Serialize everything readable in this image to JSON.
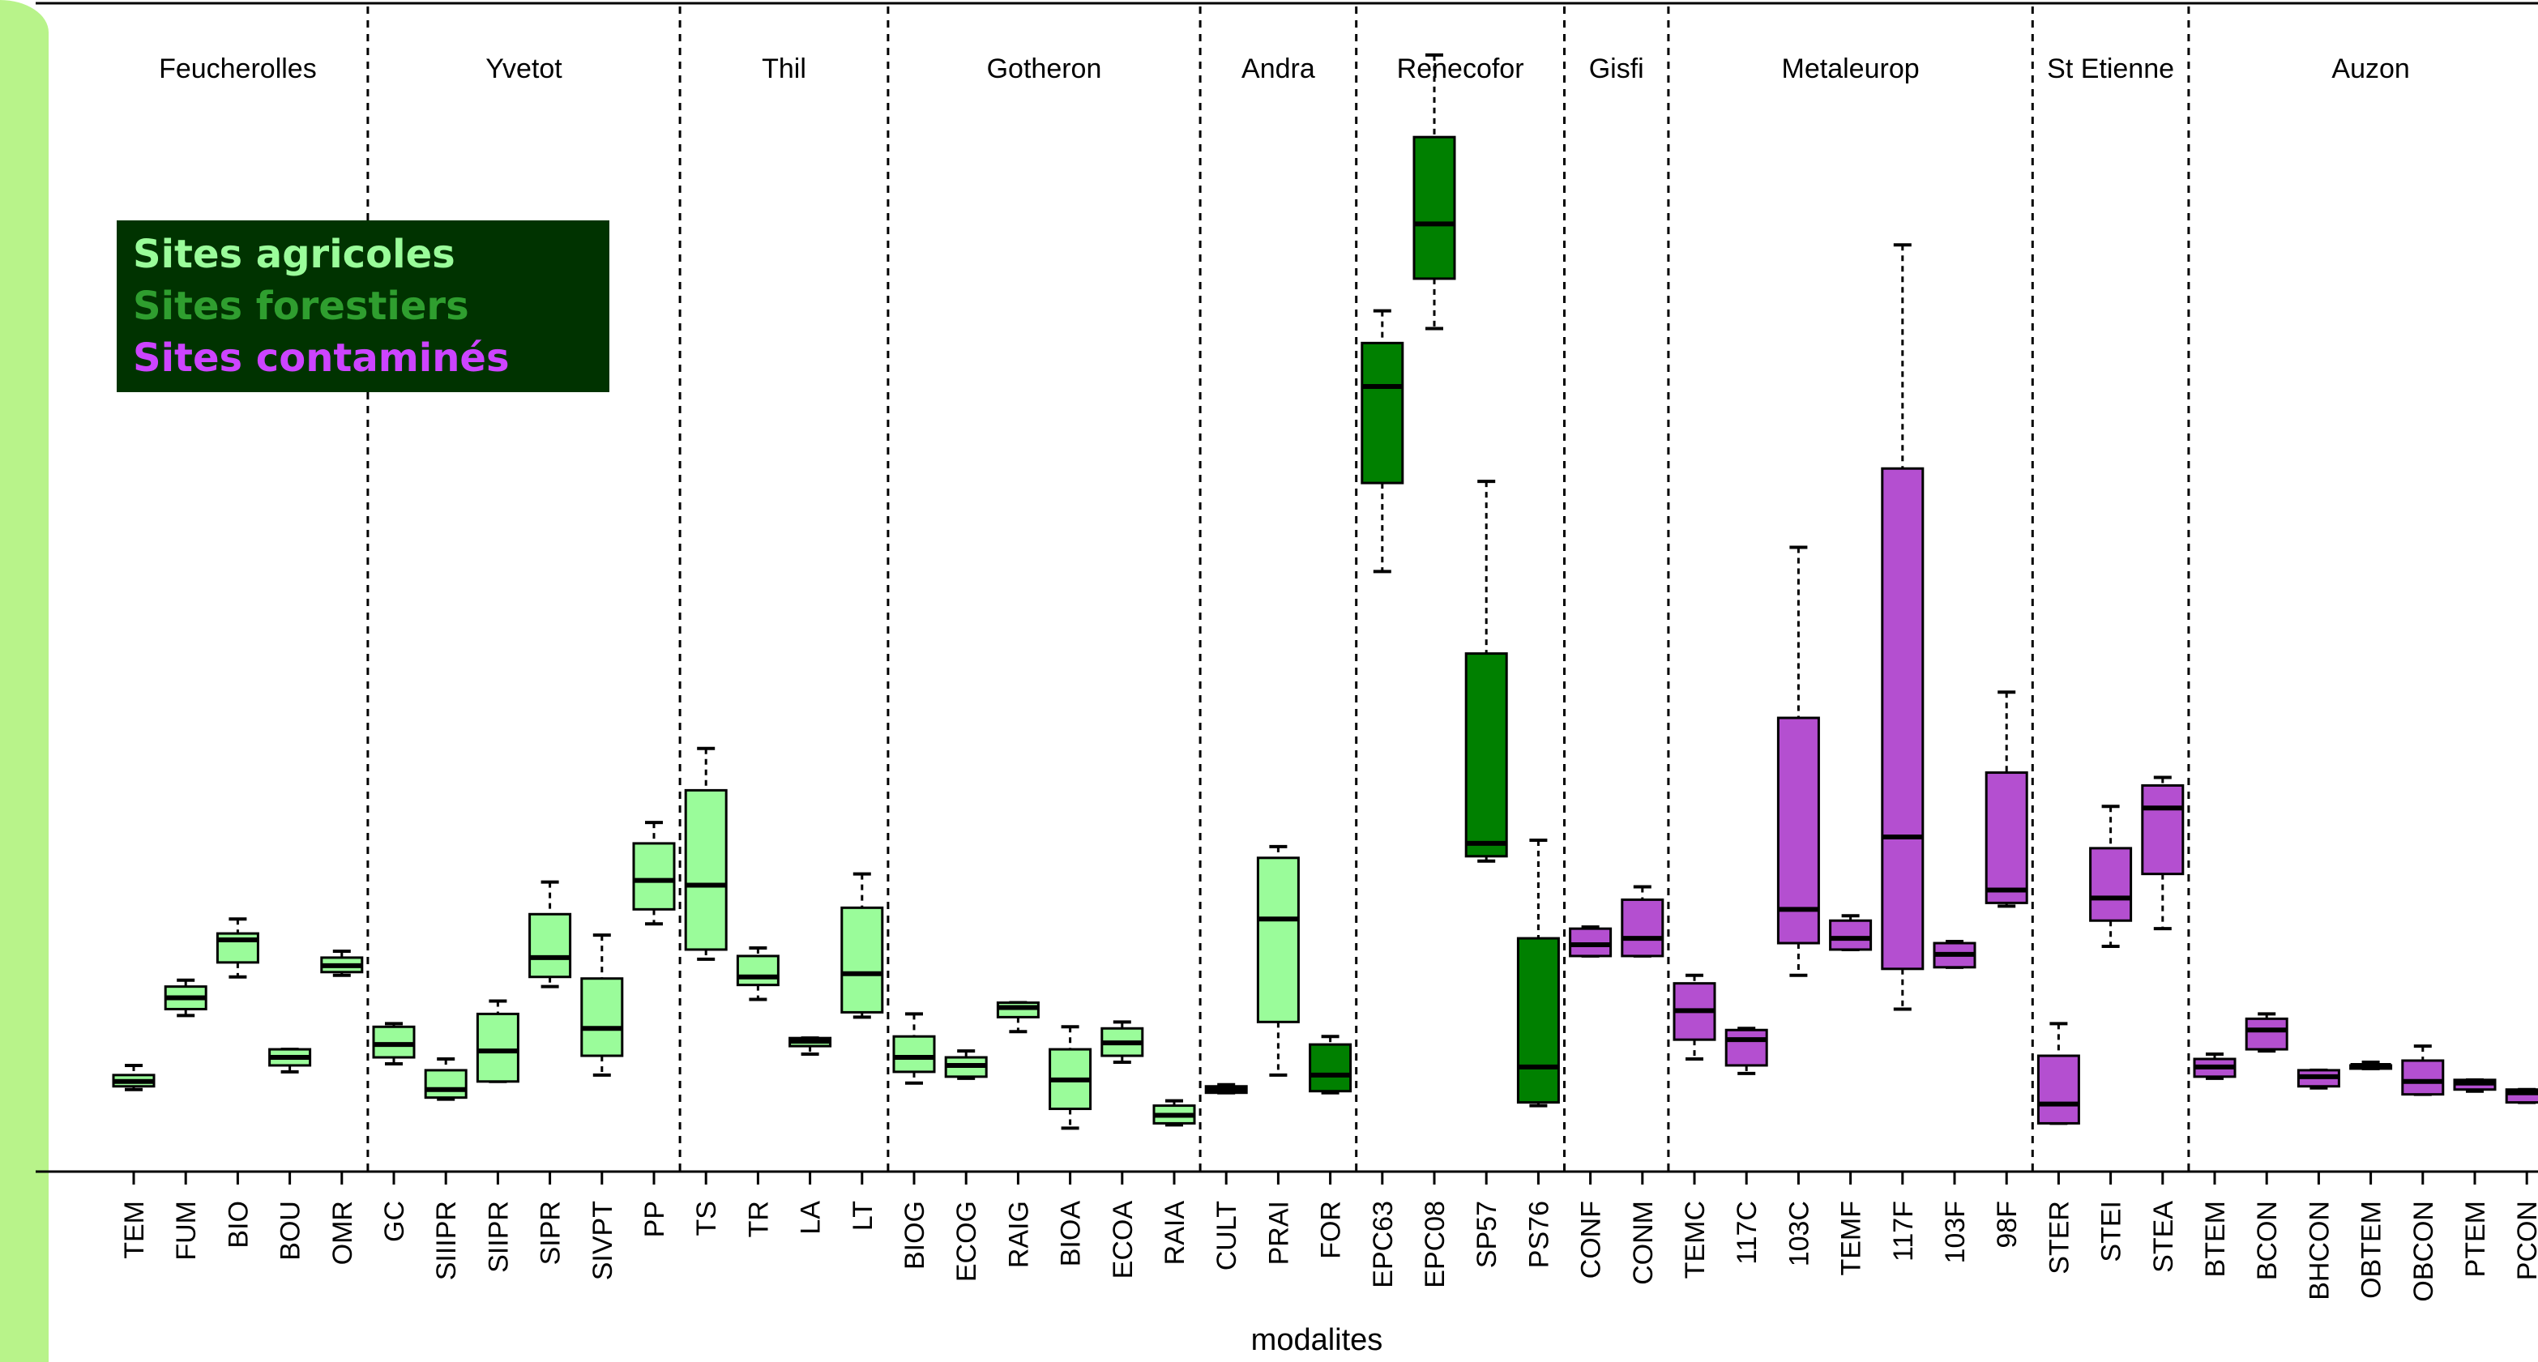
{
  "colors": {
    "agricole": "#9afc9a",
    "forestier": "#008000",
    "contamine": "#b44fd0",
    "box_stroke": "#000000",
    "legend_bg": "#003300",
    "accent": "#b8f38a"
  },
  "legend": {
    "items": [
      {
        "label": "Sites agricoles",
        "color": "#9afc9a"
      },
      {
        "label": "Sites forestiers",
        "color": "#2f9e2f"
      },
      {
        "label": "Sites contaminés",
        "color": "#cc44ff"
      }
    ]
  },
  "chart_data": {
    "type": "box",
    "xlabel": "modalites",
    "ylabel": "",
    "ylim": [
      0,
      70
    ],
    "categories": [
      "TEM",
      "FUM",
      "BIO",
      "BOU",
      "OMR",
      "GC",
      "SIIIPR",
      "SIIPR",
      "SIPR",
      "SIVPT",
      "PP",
      "TS",
      "TR",
      "LA",
      "LT",
      "BIOG",
      "ECOG",
      "RAIG",
      "BIOA",
      "ECOA",
      "RAIA",
      "CULT",
      "PRAI",
      "FOR",
      "EPC63",
      "EPC08",
      "SP57",
      "PS76",
      "CONF",
      "CONM",
      "TEMC",
      "117C",
      "103C",
      "TEMF",
      "117F",
      "103F",
      "98F",
      "STER",
      "STEI",
      "STEA",
      "BTEM",
      "BCON",
      "BHCON",
      "OBTEM",
      "OBCON",
      "PTEM",
      "PCON"
    ],
    "groups": [
      "Feucherolles",
      "Yvetot",
      "Thil",
      "Gotheron",
      "Andra",
      "Renecofor",
      "Gisfi",
      "Metaleurop",
      "St Etienne",
      "Auzon"
    ],
    "group_sizes": [
      5,
      6,
      4,
      6,
      3,
      4,
      2,
      7,
      3,
      7
    ],
    "site_type": [
      "agricole",
      "agricole",
      "agricole",
      "agricole",
      "agricole",
      "agricole",
      "agricole",
      "agricole",
      "agricole",
      "agricole",
      "agricole",
      "agricole",
      "agricole",
      "agricole",
      "agricole",
      "agricole",
      "agricole",
      "agricole",
      "agricole",
      "agricole",
      "agricole",
      "forestier",
      "agricole",
      "forestier",
      "forestier",
      "forestier",
      "forestier",
      "forestier",
      "contamine",
      "contamine",
      "contamine",
      "contamine",
      "contamine",
      "contamine",
      "contamine",
      "contamine",
      "contamine",
      "contamine",
      "contamine",
      "contamine",
      "contamine",
      "contamine",
      "contamine",
      "contamine",
      "contamine",
      "contamine",
      "contamine"
    ],
    "boxes": [
      {
        "wmin": 5.1,
        "q1": 5.3,
        "med": 5.6,
        "q3": 6.0,
        "wmax": 6.6
      },
      {
        "wmin": 9.7,
        "q1": 10.1,
        "med": 10.8,
        "q3": 11.5,
        "wmax": 11.9
      },
      {
        "wmin": 12.1,
        "q1": 13.0,
        "med": 14.4,
        "q3": 14.8,
        "wmax": 15.7
      },
      {
        "wmin": 6.2,
        "q1": 6.6,
        "med": 7.1,
        "q3": 7.6,
        "wmax": 7.6
      },
      {
        "wmin": 12.2,
        "q1": 12.4,
        "med": 12.8,
        "q3": 13.3,
        "wmax": 13.7
      },
      {
        "wmin": 6.7,
        "q1": 7.1,
        "med": 7.9,
        "q3": 9.0,
        "wmax": 9.2
      },
      {
        "wmin": 4.5,
        "q1": 4.6,
        "med": 5.1,
        "q3": 6.3,
        "wmax": 7.0
      },
      {
        "wmin": 5.6,
        "q1": 5.6,
        "med": 7.5,
        "q3": 9.8,
        "wmax": 10.6
      },
      {
        "wmin": 11.5,
        "q1": 12.1,
        "med": 13.3,
        "q3": 16.0,
        "wmax": 18.0
      },
      {
        "wmin": 6.0,
        "q1": 7.2,
        "med": 8.9,
        "q3": 12.0,
        "wmax": 14.7
      },
      {
        "wmin": 15.4,
        "q1": 16.3,
        "med": 18.1,
        "q3": 20.4,
        "wmax": 21.7
      },
      {
        "wmin": 13.2,
        "q1": 13.8,
        "med": 17.8,
        "q3": 23.7,
        "wmax": 26.3
      },
      {
        "wmin": 10.7,
        "q1": 11.6,
        "med": 12.1,
        "q3": 13.4,
        "wmax": 13.9
      },
      {
        "wmin": 7.3,
        "q1": 7.8,
        "med": 8.1,
        "q3": 8.3,
        "wmax": 8.3
      },
      {
        "wmin": 9.6,
        "q1": 9.9,
        "med": 12.3,
        "q3": 16.4,
        "wmax": 18.5
      },
      {
        "wmin": 5.5,
        "q1": 6.2,
        "med": 7.1,
        "q3": 8.4,
        "wmax": 9.8
      },
      {
        "wmin": 5.8,
        "q1": 5.9,
        "med": 6.6,
        "q3": 7.1,
        "wmax": 7.5
      },
      {
        "wmin": 8.7,
        "q1": 9.6,
        "med": 10.2,
        "q3": 10.5,
        "wmax": 10.5
      },
      {
        "wmin": 2.7,
        "q1": 3.9,
        "med": 5.7,
        "q3": 7.6,
        "wmax": 9.0
      },
      {
        "wmin": 6.8,
        "q1": 7.2,
        "med": 8.0,
        "q3": 8.9,
        "wmax": 9.3
      },
      {
        "wmin": 2.9,
        "q1": 3.0,
        "med": 3.5,
        "q3": 4.1,
        "wmax": 4.4
      },
      {
        "wmin": 4.9,
        "q1": 4.9,
        "med": 5.1,
        "q3": 5.3,
        "wmax": 5.4
      },
      {
        "wmin": 6.0,
        "q1": 9.3,
        "med": 15.7,
        "q3": 19.5,
        "wmax": 20.2
      },
      {
        "wmin": 4.9,
        "q1": 5.0,
        "med": 6.0,
        "q3": 7.9,
        "wmax": 8.4
      },
      {
        "wmin": 37.3,
        "q1": 42.8,
        "med": 48.8,
        "q3": 51.5,
        "wmax": 53.5
      },
      {
        "wmin": 52.4,
        "q1": 55.5,
        "med": 58.9,
        "q3": 64.3,
        "wmax": 69.4
      },
      {
        "wmin": 19.3,
        "q1": 19.6,
        "med": 20.4,
        "q3": 32.2,
        "wmax": 42.9
      },
      {
        "wmin": 4.1,
        "q1": 4.3,
        "med": 6.5,
        "q3": 14.5,
        "wmax": 20.6
      },
      {
        "wmin": 13.4,
        "q1": 13.4,
        "med": 14.1,
        "q3": 15.1,
        "wmax": 15.2
      },
      {
        "wmin": 13.4,
        "q1": 13.4,
        "med": 14.5,
        "q3": 16.9,
        "wmax": 17.7
      },
      {
        "wmin": 7.0,
        "q1": 8.2,
        "med": 10.0,
        "q3": 11.7,
        "wmax": 12.2
      },
      {
        "wmin": 6.1,
        "q1": 6.6,
        "med": 8.2,
        "q3": 8.8,
        "wmax": 8.9
      },
      {
        "wmin": 12.2,
        "q1": 14.2,
        "med": 16.3,
        "q3": 28.2,
        "wmax": 38.8
      },
      {
        "wmin": 13.8,
        "q1": 13.8,
        "med": 14.5,
        "q3": 15.6,
        "wmax": 15.9
      },
      {
        "wmin": 10.1,
        "q1": 12.6,
        "med": 20.8,
        "q3": 43.7,
        "wmax": 57.6
      },
      {
        "wmin": 12.7,
        "q1": 12.7,
        "med": 13.5,
        "q3": 14.2,
        "wmax": 14.3
      },
      {
        "wmin": 16.5,
        "q1": 16.7,
        "med": 17.5,
        "q3": 24.8,
        "wmax": 29.8
      },
      {
        "wmin": 3.0,
        "q1": 3.0,
        "med": 4.2,
        "q3": 7.2,
        "wmax": 9.2
      },
      {
        "wmin": 14.0,
        "q1": 15.6,
        "med": 17.0,
        "q3": 20.1,
        "wmax": 22.7
      },
      {
        "wmin": 15.1,
        "q1": 18.5,
        "med": 22.6,
        "q3": 24.0,
        "wmax": 24.5
      },
      {
        "wmin": 5.8,
        "q1": 5.9,
        "med": 6.5,
        "q3": 7.0,
        "wmax": 7.3
      },
      {
        "wmin": 7.5,
        "q1": 7.6,
        "med": 8.8,
        "q3": 9.5,
        "wmax": 9.8
      },
      {
        "wmin": 5.2,
        "q1": 5.3,
        "med": 5.9,
        "q3": 6.3,
        "wmax": 6.3
      },
      {
        "wmin": 6.4,
        "q1": 6.4,
        "med": 6.6,
        "q3": 6.6,
        "wmax": 6.8
      },
      {
        "wmin": 4.8,
        "q1": 4.8,
        "med": 5.6,
        "q3": 6.9,
        "wmax": 7.8
      },
      {
        "wmin": 5.0,
        "q1": 5.1,
        "med": 5.5,
        "q3": 5.7,
        "wmax": 5.7
      },
      {
        "wmin": 4.3,
        "q1": 4.3,
        "med": 4.9,
        "q3": 5.1,
        "wmax": 5.1
      }
    ]
  }
}
